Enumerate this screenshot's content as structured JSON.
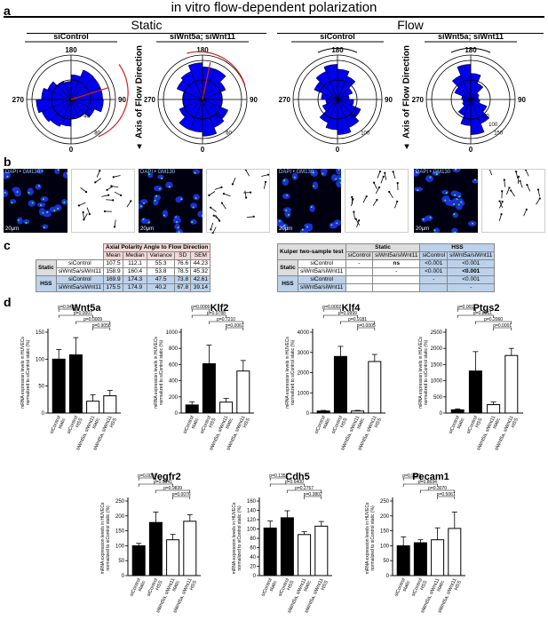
{
  "figure": {
    "main_title": "in vitro flow-dependent polarization",
    "panel_letters": {
      "a": "a",
      "b": "b",
      "c": "c",
      "d": "d"
    },
    "panel_a": {
      "group_labels": {
        "static": "Static",
        "flow": "Flow"
      },
      "axis_label": "Axis of Flow Direction",
      "roses": [
        {
          "title": "siControl",
          "labels": {
            "top": "180",
            "left": "270",
            "right": "90",
            "bottom": "0"
          },
          "rings": [
            "40",
            "80"
          ]
        },
        {
          "title": "siWnt5a; siWnt11",
          "labels": {
            "top": "180",
            "left": "270",
            "right": "90",
            "bottom": "0"
          },
          "rings": [
            "40",
            "60"
          ]
        },
        {
          "title": "siControl",
          "labels": {
            "top": "180",
            "left": "270",
            "right": "90",
            "bottom": "0"
          },
          "rings": [
            "50",
            "100"
          ]
        },
        {
          "title": "siWnt5a; siWnt11",
          "labels": {
            "top": "180",
            "left": "270",
            "right": "90",
            "bottom": "0"
          },
          "rings": [
            "50",
            "100",
            "150"
          ]
        }
      ],
      "bar_color": "#0000ee",
      "accent_color": "#d42020"
    },
    "panel_b": {
      "tile_label": "DAPI • GM130",
      "scale_label": "20μm"
    },
    "panel_c": {
      "table1": {
        "title": "Axial Polarity Angle to Flow Direction",
        "columns": [
          "Mean",
          "Median",
          "Variance",
          "SD",
          "SEM"
        ],
        "rows": [
          {
            "group": "Static",
            "cond": "siControl",
            "vals": [
              "107.5",
              "112.1",
              "55.3",
              "76.6",
              "44.23"
            ]
          },
          {
            "group": "",
            "cond": "siWnt5a/siWnt11",
            "vals": [
              "158.9",
              "160.4",
              "53.8",
              "78.5",
              "45.32"
            ]
          },
          {
            "group": "HSS",
            "cond": "siControl",
            "vals": [
              "169.9",
              "174.3",
              "47.5",
              "73.8",
              "42.61"
            ]
          },
          {
            "group": "",
            "cond": "siWnt5a/siWnt11",
            "vals": [
              "175.5",
              "174.9",
              "40.2",
              "67.8",
              "39.14"
            ]
          }
        ]
      },
      "table2": {
        "title": "Kuiper two-sample test",
        "head_static": "Static",
        "head_hss": "HSS",
        "columns": [
          "siControl",
          "siWnt5a/siWnt11",
          "siControl",
          "siWnt5a/siWnt11"
        ],
        "rows": [
          {
            "group": "Static",
            "cond": "siControl",
            "vals": [
              "-",
              "ns",
              "<0.001",
              "<0.001"
            ]
          },
          {
            "group": "",
            "cond": "siWnt5a/siWnt11",
            "vals": [
              "",
              "-",
              "<0.001",
              "<0.001"
            ]
          },
          {
            "group": "HSS",
            "cond": "siControl",
            "vals": [
              "",
              "",
              "-",
              "<0.001"
            ]
          },
          {
            "group": "",
            "cond": "siWnt5a/siWnt11",
            "vals": [
              "",
              "",
              "",
              "-"
            ]
          }
        ]
      }
    }
  },
  "chart_data": [
    {
      "type": "bar",
      "title": "Wnt5a",
      "ylabel": "mRNA expression levels in HUVECs normalized to siControl static (%)",
      "ylim": [
        0,
        150
      ],
      "yticks": [
        "0",
        "50",
        "100",
        "150"
      ],
      "categories": [
        "siControl static",
        "siControl HSS",
        "siWnt5a, siWnt11 static",
        "siWnt5a, siWnt11 HSS"
      ],
      "values": [
        100,
        108,
        22,
        32
      ],
      "errors": [
        18,
        32,
        12,
        10
      ],
      "pvalues": [
        "p=0.9431",
        "p=0.0007",
        "p=0.0009",
        "p=0.9058"
      ]
    },
    {
      "type": "bar",
      "title": "Klf2",
      "ylabel": "mRNA expression levels in HUVECs normalized to siControl static (%)",
      "ylim": [
        0,
        1000
      ],
      "yticks": [
        "0",
        "200",
        "400",
        "600",
        "800",
        "1000"
      ],
      "categories": [
        "siControl static",
        "siControl HSS",
        "siWnt5a, siWnt11 static",
        "siWnt5a, siWnt11 HSS"
      ],
      "values": [
        100,
        610,
        135,
        520
      ],
      "errors": [
        40,
        230,
        45,
        130
      ],
      "pvalues": [
        "p=0.0006",
        "p=0.9788",
        "p=0.7210",
        "p=0.0061"
      ]
    },
    {
      "type": "bar",
      "title": "Klf4",
      "ylabel": "mRNA expression levels in HUVECs normalized to siControl static (%)",
      "ylim": [
        0,
        4000
      ],
      "yticks": [
        "0",
        "1000",
        "2000",
        "3000",
        "4000"
      ],
      "categories": [
        "siControl static",
        "siControl HSS",
        "siWnt5a, siWnt11 static",
        "siWnt5a, siWnt11 HSS"
      ],
      "values": [
        100,
        2800,
        100,
        2550
      ],
      "errors": [
        30,
        500,
        30,
        350
      ],
      "pvalues": [
        "p=0.0002",
        "p=0.9999",
        "p=0.9181",
        "p=0.0005"
      ]
    },
    {
      "type": "bar",
      "title": "Ptgs2",
      "ylabel": "mRNA expression levels in HUVECs normalized to siControl static (%)",
      "ylim": [
        0,
        2500
      ],
      "yticks": [
        "0",
        "500",
        "1000",
        "1500",
        "2000",
        "2500"
      ],
      "categories": [
        "siControl static",
        "siControl HSS",
        "siWnt5a, siWnt11 static",
        "siWnt5a, siWnt11 HSS"
      ],
      "values": [
        100,
        1300,
        260,
        1780
      ],
      "errors": [
        30,
        600,
        80,
        220
      ],
      "pvalues": [
        "p=0.0011",
        "p=0.8961",
        "p=0.2060",
        "p=0.0001"
      ]
    },
    {
      "type": "bar",
      "title": "Vegfr2",
      "ylabel": "mRNA expression levels in HUVECs normalized to siControl static (%)",
      "ylim": [
        0,
        250
      ],
      "yticks": [
        "0",
        "50",
        "100",
        "150",
        "200",
        "250"
      ],
      "categories": [
        "siControl static",
        "siControl HSS",
        "siWnt5a, siWnt11 static",
        "siWnt5a, siWnt11 HSS"
      ],
      "values": [
        100,
        178,
        120,
        182
      ],
      "errors": [
        8,
        35,
        18,
        22
      ],
      "pvalues": [
        "p=0.0016",
        "p=0.5941",
        "p=0.9839",
        "p=0.0076"
      ]
    },
    {
      "type": "bar",
      "title": "Cdh5",
      "ylabel": "mRNA expression levels in HUVECs normalized to siControl static (%)",
      "ylim": [
        0,
        160
      ],
      "yticks": [
        "0",
        "20",
        "40",
        "60",
        "80",
        "100",
        "120",
        "140",
        "160"
      ],
      "categories": [
        "siControl static",
        "siControl HSS",
        "siWnt5a, siWnt11 static",
        "siWnt5a, siWnt11 HSS"
      ],
      "values": [
        102,
        124,
        88,
        106
      ],
      "errors": [
        15,
        15,
        6,
        10
      ],
      "pvalues": [
        "p=0.1351",
        "p=0.6400",
        "p=0.2767",
        "p=0.3802"
      ]
    },
    {
      "type": "bar",
      "title": "Pecam1",
      "ylabel": "mRNA expression levels in HUVECs normalized to siControl static (%)",
      "ylim": [
        0,
        250
      ],
      "yticks": [
        "0",
        "50",
        "100",
        "150",
        "200",
        "250"
      ],
      "categories": [
        "siControl static",
        "siControl HSS",
        "siWnt5a, siWnt11 static",
        "siWnt5a, siWnt11 HSS"
      ],
      "values": [
        100,
        110,
        120,
        158
      ],
      "errors": [
        30,
        10,
        40,
        55
      ],
      "pvalues": [
        "p=0.9829",
        "p=0.8694",
        "p=0.3070",
        "p=0.5061"
      ]
    }
  ]
}
